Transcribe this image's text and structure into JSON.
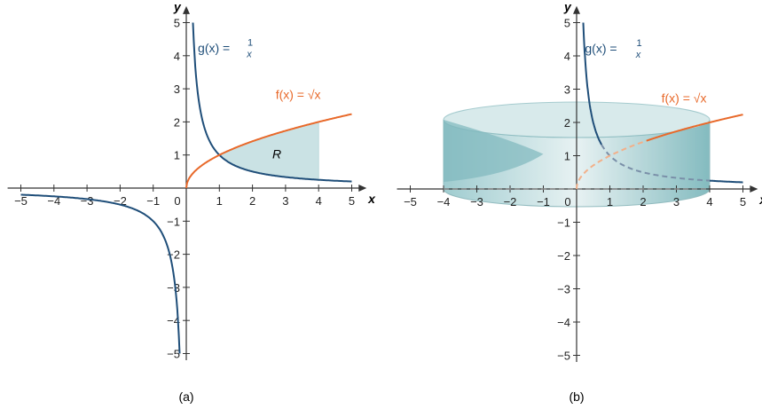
{
  "chart_data": [
    {
      "type": "line",
      "panel_label": "(a)",
      "xlabel": "x",
      "ylabel": "y",
      "xlim": [
        -5,
        5
      ],
      "ylim": [
        -5,
        5
      ],
      "xticks": [
        -5,
        -4,
        -3,
        -2,
        -1,
        1,
        2,
        3,
        4,
        5
      ],
      "yticks": [
        -5,
        -4,
        -3,
        -2,
        -1,
        1,
        2,
        3,
        4,
        5
      ],
      "origin_label": "0",
      "series": [
        {
          "name": "g(x) = 1/x",
          "func": "1/x",
          "domain": [
            -5,
            5
          ],
          "color": "#1f4e79"
        },
        {
          "name": "f(x) = √x",
          "func": "sqrt(x)",
          "domain": [
            0,
            5
          ],
          "color": "#e8692a"
        }
      ],
      "region": {
        "label": "R",
        "x_range": [
          1,
          4
        ],
        "between": [
          "f",
          "g"
        ],
        "color": "#a8cfd3"
      }
    },
    {
      "type": "line",
      "panel_label": "(b)",
      "xlabel": "x",
      "ylabel": "y",
      "xlim": [
        -5,
        5
      ],
      "ylim": [
        -5,
        5
      ],
      "xticks": [
        -5,
        -4,
        -3,
        -2,
        -1,
        1,
        2,
        3,
        4,
        5
      ],
      "yticks": [
        -5,
        -4,
        -3,
        -2,
        -1,
        1,
        2,
        3,
        4,
        5
      ],
      "origin_label": "0",
      "series": [
        {
          "name": "g(x) = 1/x",
          "func": "1/x",
          "domain": [
            0.2,
            5
          ],
          "color": "#1f4e79"
        },
        {
          "name": "f(x) = √x",
          "func": "sqrt(x)",
          "domain": [
            0,
            5
          ],
          "color": "#e8692a"
        }
      ],
      "solid": {
        "description": "region R revolved about the y-axis",
        "radius": 4,
        "height": 2,
        "color": "#7fb8bd"
      }
    }
  ],
  "labels": {
    "g_name": "g(x) =",
    "g_num": "1",
    "g_den": "x",
    "f_name": "f(x) =",
    "f_rad": "x",
    "region": "R",
    "a": "(a)",
    "b": "(b)",
    "x": "x",
    "y": "y"
  }
}
